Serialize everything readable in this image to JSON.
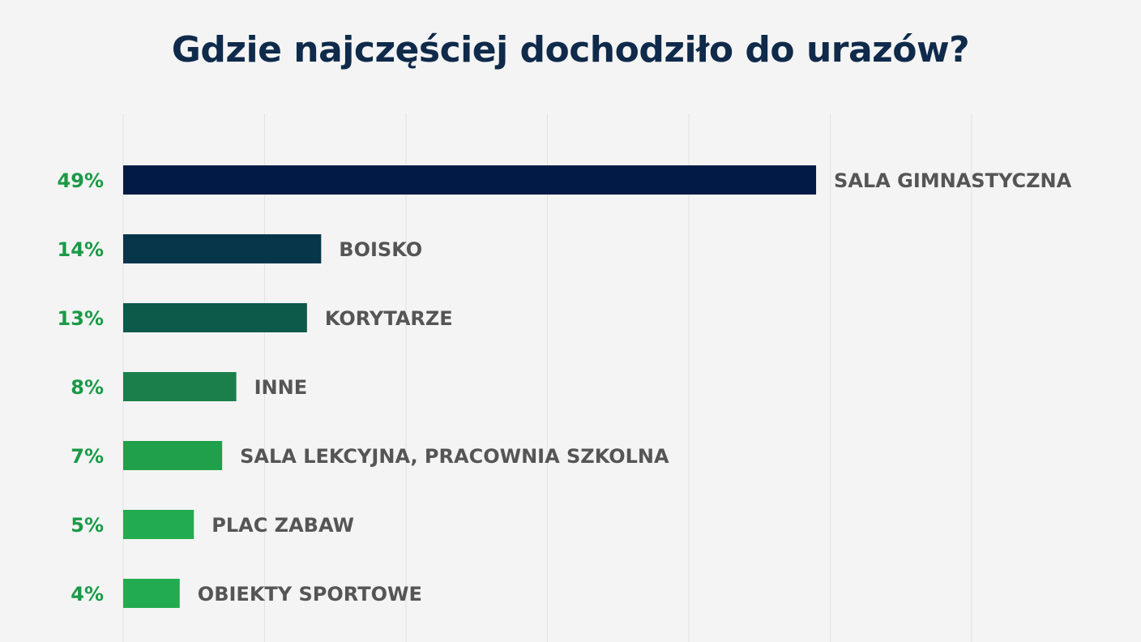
{
  "chart_data": {
    "type": "bar",
    "orientation": "horizontal",
    "title": "Gdzie najczęściej dochodziło do urazów?",
    "categories": [
      "SALA GIMNASTYCZNA",
      "BOISKO",
      "KORYTARZE",
      "INNE",
      "SALA LEKCYJNA, PRACOWNIA SZKOLNA",
      "PLAC ZABAW",
      "OBIEKTY SPORTOWE"
    ],
    "values": [
      49,
      14,
      13,
      8,
      7,
      5,
      4
    ],
    "data_labels": [
      "49%",
      "14%",
      "13%",
      "8%",
      "7%",
      "5%",
      "4%"
    ],
    "xlim": [
      0,
      60
    ],
    "grid": true,
    "legend": "none",
    "bar_colors": [
      "#021a46",
      "#07354a",
      "#0e5a4a",
      "#1a7f4b",
      "#21a04c",
      "#22ac4f",
      "#22ac4f"
    ],
    "value_label_color": "#1a9a47",
    "category_label_color": "#555555",
    "title_color": "#0f2a4a"
  }
}
